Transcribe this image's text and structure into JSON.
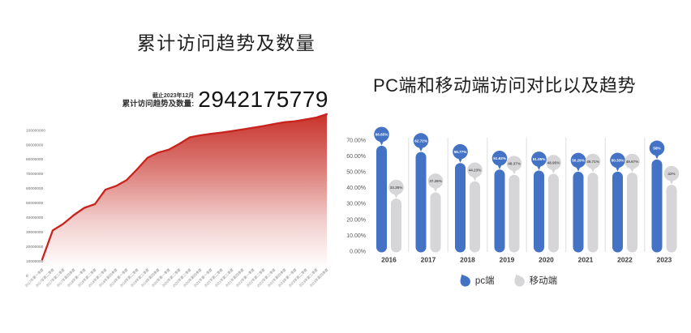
{
  "left_chart": {
    "title": "累计访问趋势及数量",
    "stat_caption_line1": "截止2023年12月",
    "stat_caption_line2": "累计访问趋势及数量:",
    "stat_value": "2942175779",
    "colors": {
      "line": "#c8231c",
      "area_top": "#c5271f",
      "axis_text": "#6a6a6a"
    }
  },
  "right_chart": {
    "title": "PC端和移动端访问对比以及趋势",
    "legend": [
      {
        "label": "pc端",
        "color": "#4472c4"
      },
      {
        "label": "移动端",
        "color": "#d6d6d8"
      }
    ],
    "colors": {
      "pc": "#4472c4",
      "mobile": "#d6d6d8",
      "pc_bubble_text": "#ffffff",
      "mobile_bubble_text": "#595959",
      "separator": "#e7e7e9",
      "axis_text": "#595959",
      "year_text": "#3a3a3a"
    }
  },
  "chart_data": [
    {
      "type": "area",
      "title": "累计访问趋势及数量",
      "annotation": "截止2023年12月 累计访问趋势及数量: 2942175779",
      "x": [
        "2017年第一季度",
        "2017年第二季度",
        "2017年第三季度",
        "2017年第四季度",
        "2018年第一季度",
        "2018年第二季度",
        "2018年第三季度",
        "2018年第四季度",
        "2019年第一季度",
        "2019年第二季度",
        "2019年第三季度",
        "2019年第四季度",
        "2020年第一季度",
        "2020年第二季度",
        "2020年第三季度",
        "2020年第四季度",
        "2021年第一季度",
        "2021年第二季度",
        "2021年第三季度",
        "2021年第四季度",
        "2022年第一季度",
        "2022年第二季度",
        "2022年第三季度",
        "2022年第四季度",
        "2023年第一季度",
        "2023年第二季度",
        "2023年第三季度",
        "2023年第四季度"
      ],
      "values": [
        11000000,
        31000000,
        35500000,
        41500000,
        46500000,
        49000000,
        59000000,
        61500000,
        65500000,
        73000000,
        81000000,
        84500000,
        86500000,
        90500000,
        95000000,
        96400000,
        97400000,
        98300000,
        99300000,
        100400000,
        101600000,
        102800000,
        104200000,
        105400000,
        106100000,
        107300000,
        108600000,
        111000000
      ],
      "yticks": [
        0,
        10000000,
        20000000,
        30000000,
        40000000,
        50000000,
        60000000,
        70000000,
        80000000,
        90000000,
        100000000
      ],
      "ylim": [
        0,
        115000000
      ],
      "grid": false,
      "legend_position": "none"
    },
    {
      "type": "bar",
      "title": "PC端和移动端访问对比以及趋势",
      "categories": [
        "2016",
        "2017",
        "2018",
        "2019",
        "2020",
        "2021",
        "2022",
        "2023"
      ],
      "series": [
        {
          "name": "pc端",
          "values": [
            66.65,
            62.72,
            55.77,
            51.63,
            51.05,
            50.29,
            50.33,
            58
          ],
          "labels": [
            "66.65%",
            "62.72%",
            "55.77%",
            "51.63%",
            "51.05%",
            "50.29%",
            "50.33%",
            "58%"
          ]
        },
        {
          "name": "移动端",
          "values": [
            33.35,
            37.28,
            44.23,
            48.37,
            48.95,
            49.71,
            49.67,
            42
          ],
          "labels": [
            "33.35%",
            "37.28%",
            "44.23%",
            "48.37%",
            "48.95%",
            "49.71%",
            "49.67%",
            "42%"
          ]
        }
      ],
      "ytick_labels": [
        "0.00%",
        "10.00%",
        "20.00%",
        "30.00%",
        "40.00%",
        "50.00%",
        "60.00%",
        "70.00%"
      ],
      "ylim": [
        0,
        70
      ],
      "grid": false,
      "legend_position": "bottom"
    }
  ]
}
